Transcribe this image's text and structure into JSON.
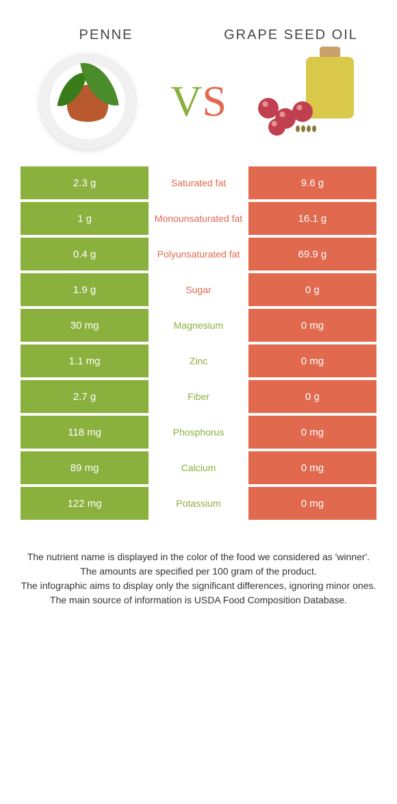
{
  "header": {
    "left_title": "Penne",
    "right_title": "Grape seed oil"
  },
  "colors": {
    "left": "#8ab03e",
    "right": "#e0694e",
    "left_text": "#ffffff",
    "right_text": "#ffffff"
  },
  "vs": {
    "v": "V",
    "s": "S"
  },
  "rows": [
    {
      "left": "2.3 g",
      "label": "Saturated fat",
      "right": "9.6 g",
      "winner": "right"
    },
    {
      "left": "1 g",
      "label": "Monounsaturated fat",
      "right": "16.1 g",
      "winner": "right"
    },
    {
      "left": "0.4 g",
      "label": "Polyunsaturated fat",
      "right": "69.9 g",
      "winner": "right"
    },
    {
      "left": "1.9 g",
      "label": "Sugar",
      "right": "0 g",
      "winner": "right"
    },
    {
      "left": "30 mg",
      "label": "Magnesium",
      "right": "0 mg",
      "winner": "left"
    },
    {
      "left": "1.1 mg",
      "label": "Zinc",
      "right": "0 mg",
      "winner": "left"
    },
    {
      "left": "2.7 g",
      "label": "Fiber",
      "right": "0 g",
      "winner": "left"
    },
    {
      "left": "118 mg",
      "label": "Phosphorus",
      "right": "0 mg",
      "winner": "left"
    },
    {
      "left": "89 mg",
      "label": "Calcium",
      "right": "0 mg",
      "winner": "left"
    },
    {
      "left": "122 mg",
      "label": "Potassium",
      "right": "0 mg",
      "winner": "left"
    }
  ],
  "footer": {
    "line1": "The nutrient name is displayed in the color of the food we considered as 'winner'.",
    "line2": "The amounts are specified per 100 gram of the product.",
    "line3": "The infographic aims to display only the significant differences, ignoring minor ones.",
    "line4": "The main source of information is USDA Food Composition Database."
  }
}
